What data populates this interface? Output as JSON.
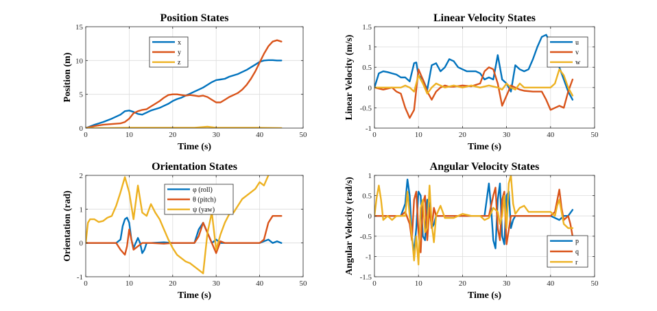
{
  "chart_data": [
    {
      "type": "line",
      "title": "Position States",
      "xlabel": "Time (s)",
      "ylabel": "Position (m)",
      "xlim": [
        0,
        50
      ],
      "ylim": [
        0,
        15
      ],
      "xticks": [
        0,
        10,
        20,
        30,
        40,
        50
      ],
      "yticks": [
        0,
        5,
        10,
        15
      ],
      "grid": true,
      "legend_position": "upper-center",
      "series": [
        {
          "name": "x",
          "color": "#0072BD",
          "x": [
            0,
            2,
            4,
            6,
            8,
            9,
            10,
            11,
            12,
            13,
            14,
            15,
            16,
            17,
            18,
            19,
            20,
            21,
            22,
            23,
            24,
            25,
            26,
            27,
            28,
            29,
            30,
            31,
            32,
            33,
            34,
            35,
            36,
            37,
            38,
            39,
            40,
            41,
            42,
            43,
            44,
            45
          ],
          "y": [
            0,
            0.5,
            0.9,
            1.4,
            2.0,
            2.5,
            2.6,
            2.4,
            2.1,
            2.0,
            2.3,
            2.6,
            2.8,
            3.0,
            3.3,
            3.6,
            4.0,
            4.3,
            4.5,
            4.8,
            5.1,
            5.4,
            5.7,
            6.0,
            6.4,
            6.8,
            7.1,
            7.2,
            7.3,
            7.6,
            7.8,
            8.0,
            8.3,
            8.6,
            9.0,
            9.4,
            9.8,
            10.0,
            10.05,
            10.05,
            10.0,
            10.0
          ]
        },
        {
          "name": "y",
          "color": "#D95319",
          "x": [
            0,
            2,
            4,
            6,
            8,
            9,
            10,
            11,
            12,
            13,
            14,
            15,
            16,
            17,
            18,
            19,
            20,
            21,
            22,
            23,
            24,
            25,
            26,
            27,
            28,
            29,
            30,
            31,
            32,
            33,
            34,
            35,
            36,
            37,
            38,
            39,
            40,
            41,
            42,
            43,
            44,
            45
          ],
          "y": [
            0,
            0.3,
            0.5,
            0.6,
            0.7,
            0.9,
            1.4,
            2.2,
            2.5,
            2.7,
            2.8,
            3.2,
            3.6,
            4.0,
            4.5,
            4.9,
            5.0,
            5.0,
            4.9,
            4.8,
            4.9,
            4.8,
            4.7,
            4.8,
            4.6,
            4.2,
            3.8,
            3.8,
            4.2,
            4.6,
            4.9,
            5.2,
            5.7,
            6.4,
            7.3,
            8.4,
            9.7,
            11.0,
            12.1,
            12.8,
            13.0,
            12.8
          ]
        },
        {
          "name": "z",
          "color": "#EDB120",
          "x": [
            0,
            5,
            10,
            15,
            20,
            25,
            28,
            30,
            32,
            35,
            40,
            45
          ],
          "y": [
            0,
            0,
            0.05,
            0.05,
            0.05,
            0.05,
            0.2,
            0.05,
            0.05,
            0.05,
            0.05,
            0
          ]
        }
      ]
    },
    {
      "type": "line",
      "title": "Linear Velocity States",
      "xlabel": "Time (s)",
      "ylabel": "Linear Velocity (m/s)",
      "xlim": [
        0,
        50
      ],
      "ylim": [
        -1,
        1.5
      ],
      "xticks": [
        0,
        10,
        20,
        30,
        40,
        50
      ],
      "yticks": [
        -1,
        -0.5,
        0,
        0.5,
        1,
        1.5
      ],
      "grid": true,
      "legend_position": "upper-right",
      "series": [
        {
          "name": "u",
          "color": "#0072BD",
          "x": [
            0,
            1,
            2,
            3,
            4,
            5,
            6,
            7,
            8,
            9,
            9.5,
            10,
            11,
            12,
            13,
            14,
            15,
            16,
            17,
            18,
            19,
            20,
            21,
            22,
            23,
            24,
            25,
            26,
            27,
            28,
            29,
            30,
            31,
            32,
            33,
            34,
            35,
            36,
            37,
            38,
            39,
            40,
            41,
            42,
            43,
            44,
            45
          ],
          "y": [
            0,
            0.35,
            0.4,
            0.38,
            0.35,
            0.32,
            0.25,
            0.25,
            0.15,
            0.6,
            0.62,
            0.3,
            0.2,
            -0.05,
            0.55,
            0.6,
            0.4,
            0.5,
            0.7,
            0.65,
            0.5,
            0.45,
            0.4,
            0.4,
            0.4,
            0.35,
            0.2,
            0.25,
            0.2,
            0.8,
            0.2,
            0.1,
            -0.1,
            0.55,
            0.45,
            0.4,
            0.45,
            0.7,
            1.0,
            1.25,
            1.3,
            1.1,
            0.8,
            0.5,
            0.2,
            -0.1,
            -0.3
          ]
        },
        {
          "name": "v",
          "color": "#D95319",
          "x": [
            0,
            2,
            4,
            5,
            6,
            7,
            8,
            9,
            10,
            11,
            12,
            13,
            14,
            15,
            16,
            17,
            18,
            20,
            22,
            24,
            25,
            26,
            27,
            28,
            29,
            30,
            31,
            32,
            33,
            34,
            36,
            38,
            39,
            40,
            41,
            42,
            43,
            44,
            45
          ],
          "y": [
            0,
            -0.05,
            0,
            -0.1,
            -0.15,
            -0.5,
            -0.75,
            -0.55,
            0.45,
            0.2,
            -0.1,
            -0.3,
            -0.1,
            0,
            0.05,
            0.02,
            0.02,
            0.05,
            0.03,
            0.1,
            0.4,
            0.5,
            0.45,
            0.1,
            -0.45,
            -0.2,
            0.05,
            0,
            -0.05,
            -0.08,
            -0.1,
            -0.1,
            -0.3,
            -0.55,
            -0.5,
            -0.45,
            -0.5,
            -0.1,
            0.2
          ]
        },
        {
          "name": "w",
          "color": "#EDB120",
          "x": [
            0,
            2,
            4,
            6,
            7,
            8,
            9,
            10,
            11,
            12,
            13,
            14,
            16,
            18,
            20,
            22,
            24,
            26,
            28,
            29,
            30,
            31,
            32,
            33,
            34,
            36,
            38,
            40,
            41,
            42,
            43,
            44,
            45
          ],
          "y": [
            0,
            0,
            0,
            0,
            0.05,
            0,
            -0.1,
            0.3,
            0.1,
            -0.15,
            0,
            0.1,
            0,
            0.05,
            0,
            0.05,
            0,
            0.05,
            0,
            -0.05,
            0.1,
            0,
            -0.05,
            0.1,
            0,
            0,
            0,
            0,
            0.1,
            0.45,
            0.3,
            0,
            -0.2
          ]
        }
      ]
    },
    {
      "type": "line",
      "title": "Orientation States",
      "xlabel": "Time (s)",
      "ylabel": "Orientation (rad)",
      "xlim": [
        0,
        50
      ],
      "ylim": [
        -1,
        2
      ],
      "xticks": [
        0,
        10,
        20,
        30,
        40,
        50
      ],
      "yticks": [
        -1,
        0,
        1,
        2
      ],
      "grid": true,
      "legend_position": "upper-center",
      "series": [
        {
          "name": "φ (roll)",
          "color": "#0072BD",
          "x": [
            0,
            5,
            7,
            8,
            8.5,
            9,
            9.5,
            10,
            10.5,
            11,
            11.5,
            12,
            12.5,
            13,
            13.5,
            14,
            15,
            18,
            20,
            25,
            26,
            27,
            28,
            29,
            30,
            31,
            35,
            40,
            42,
            43,
            44,
            45
          ],
          "y": [
            0,
            0,
            0,
            0.1,
            0.5,
            0.7,
            0.75,
            0.6,
            0.1,
            -0.15,
            0,
            0.15,
            0,
            -0.3,
            -0.2,
            0,
            0,
            0.02,
            0,
            0,
            0.4,
            0.6,
            0.3,
            0,
            0.1,
            0,
            0,
            0,
            0.1,
            0,
            0.05,
            0
          ]
        },
        {
          "name": "θ (pitch)",
          "color": "#D95319",
          "x": [
            0,
            5,
            7,
            8,
            9,
            9.5,
            10,
            11,
            12,
            13,
            14,
            15,
            18,
            20,
            25,
            26,
            27,
            28,
            29,
            30,
            31,
            32,
            35,
            40,
            41,
            42,
            43,
            44,
            45
          ],
          "y": [
            0,
            0,
            0,
            -0.2,
            -0.35,
            -0.1,
            0.4,
            -0.2,
            -0.1,
            0,
            0,
            0,
            -0.02,
            0,
            0,
            0.2,
            0.6,
            0.3,
            0,
            -0.3,
            0.05,
            0,
            0,
            0,
            0.1,
            0.6,
            0.8,
            0.8,
            0.8
          ]
        },
        {
          "name": "ψ (yaw)",
          "color": "#EDB120",
          "x": [
            0,
            0.5,
            1,
            2,
            3,
            4,
            5,
            6,
            7,
            8,
            9,
            10,
            11,
            12,
            13,
            14,
            15,
            16,
            17,
            18,
            19,
            20,
            21,
            22,
            23,
            24,
            25,
            26,
            27,
            28,
            29,
            30,
            31,
            32,
            33,
            34,
            35,
            36,
            37,
            38,
            39,
            40,
            41,
            42,
            43,
            44,
            45
          ],
          "y": [
            0,
            0.6,
            0.7,
            0.7,
            0.62,
            0.65,
            0.75,
            0.8,
            1.1,
            1.5,
            1.95,
            1.5,
            0.7,
            1.7,
            0.9,
            0.8,
            1.15,
            0.9,
            0.7,
            0.4,
            0.1,
            -0.15,
            -0.35,
            -0.45,
            -0.55,
            -0.6,
            -0.7,
            -0.8,
            -0.9,
            0.3,
            0.9,
            -0.2,
            0.25,
            0.6,
            0.85,
            0.9,
            1.1,
            1.3,
            1.4,
            1.5,
            1.6,
            1.8,
            1.7,
            2.0,
            2.1,
            2.1,
            2.1
          ]
        }
      ]
    },
    {
      "type": "line",
      "title": "Angular Velocity States",
      "xlabel": "Time (s)",
      "ylabel": "Angular Velocity (rad/s)",
      "xlim": [
        0,
        50
      ],
      "ylim": [
        -1.5,
        1
      ],
      "xticks": [
        0,
        10,
        20,
        30,
        40,
        50
      ],
      "yticks": [
        -1.5,
        -1,
        -0.5,
        0,
        0.5,
        1
      ],
      "grid": true,
      "legend_position": "lower-right",
      "series": [
        {
          "name": "p",
          "color": "#0072BD",
          "x": [
            0,
            6,
            7,
            7.5,
            8,
            8.5,
            9,
            9.5,
            10,
            10.5,
            11,
            11.5,
            12,
            12.5,
            13,
            13.5,
            14,
            15,
            20,
            25,
            25.5,
            26,
            26.5,
            27,
            27.5,
            28,
            28.5,
            29,
            29.5,
            30,
            30.5,
            31,
            31.5,
            32,
            35,
            40,
            42,
            43,
            44,
            45
          ],
          "y": [
            0,
            0,
            0.3,
            0.9,
            0.5,
            -0.5,
            -0.9,
            -0.3,
            0.6,
            0.5,
            -0.5,
            -0.6,
            0.4,
            0.3,
            -0.3,
            -0.2,
            0,
            0,
            0,
            0,
            0.4,
            0.8,
            0.2,
            -0.6,
            -0.8,
            0.4,
            0.8,
            -0.5,
            -0.7,
            0.5,
            0.6,
            -0.3,
            -0.1,
            0,
            0,
            0,
            -0.1,
            0,
            0,
            0.15
          ]
        },
        {
          "name": "q",
          "color": "#D95319",
          "x": [
            0,
            6,
            7,
            8,
            8.5,
            9,
            9.5,
            10,
            10.5,
            11,
            11.5,
            12,
            12.5,
            13,
            13.5,
            14,
            15,
            20,
            25,
            26,
            27,
            27.5,
            28,
            28.5,
            29,
            29.5,
            30,
            31,
            32,
            35,
            40,
            41,
            42,
            42.5,
            43,
            44,
            44.5,
            45
          ],
          "y": [
            0,
            0,
            0.1,
            -0.2,
            -0.6,
            0.4,
            0.6,
            -0.4,
            -0.9,
            0.3,
            0.5,
            -0.6,
            0.2,
            -0.3,
            0.2,
            0,
            0,
            0,
            0,
            0,
            0.5,
            0.7,
            -0.3,
            -0.6,
            0.4,
            0.6,
            -0.7,
            0,
            0,
            0,
            0,
            0.1,
            0.65,
            0.2,
            -0.1,
            0,
            -0.2,
            -0.5
          ]
        },
        {
          "name": "r",
          "color": "#EDB120",
          "x": [
            0,
            0.5,
            1,
            1.5,
            2,
            3,
            4,
            5,
            6,
            7,
            7.5,
            8,
            8.5,
            9,
            9.5,
            10,
            10.5,
            11,
            11.5,
            12,
            12.5,
            13,
            13.5,
            14,
            15,
            16,
            18,
            20,
            22,
            24,
            25,
            26,
            27,
            28,
            28.5,
            29,
            29.5,
            30,
            30.5,
            31,
            31.5,
            32,
            33,
            34,
            35,
            36,
            38,
            40,
            41,
            41.5,
            42,
            43,
            44,
            45
          ],
          "y": [
            0,
            0.45,
            0.75,
            0.4,
            -0.1,
            0,
            -0.1,
            0,
            0,
            0,
            0.6,
            0,
            -0.5,
            -1.1,
            -0.5,
            -1.2,
            0.2,
            0.4,
            -0.4,
            -0.3,
            0.75,
            -0.2,
            -0.65,
            0,
            0.25,
            -0.05,
            -0.05,
            0.05,
            0,
            0,
            -0.1,
            -0.05,
            0.2,
            0.1,
            -0.2,
            0,
            0.5,
            -0.3,
            0.8,
            1.0,
            0.3,
            0.05,
            0.2,
            0.25,
            0.1,
            0.1,
            0.1,
            0.1,
            0,
            0.25,
            0.4,
            -0.2,
            -0.3,
            -0.3
          ]
        }
      ]
    }
  ]
}
